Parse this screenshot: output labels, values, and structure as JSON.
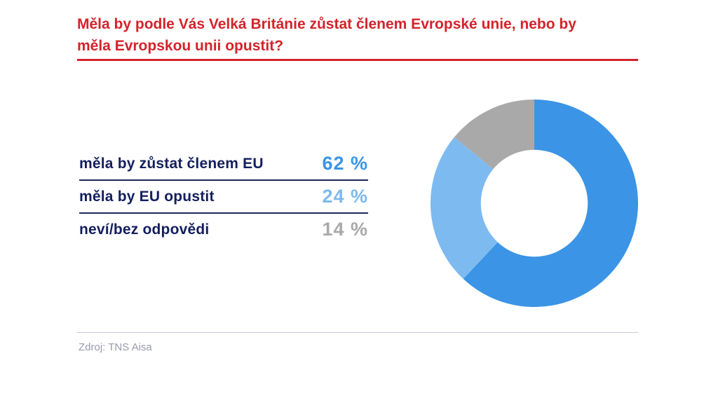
{
  "chart_data": {
    "type": "pie",
    "style": "donut",
    "title": "Měla by podle Vás Velká Británie zůstat členem Evropské unie, nebo by měla Evropskou unii opustit?",
    "title_lines": [
      "Měla by podle Vás Velká Británie zůstat členem Evropské unie, nebo by",
      "měla Evropskou unii opustit?"
    ],
    "categories": [
      "měla by zůstat členem EU",
      "měla by EU opustit",
      "neví/bez odpovědi"
    ],
    "values": [
      62,
      24,
      14
    ],
    "unit": "%",
    "value_labels": [
      "62 %",
      "24 %",
      "14 %"
    ],
    "colors": [
      "#3b94e5",
      "#7dbaef",
      "#a9a9a9"
    ],
    "start_angle_deg": 0,
    "direction": "clockwise",
    "inner_radius_ratio": 0.515,
    "legend_position": "left",
    "data_labels_shown_on_slices": false
  },
  "source_note": "Zdroj: TNS Aisa",
  "colors": {
    "background": "#ffffff",
    "title_red": "#d4232a",
    "label_navy": "#141f5e",
    "separator_navy": "#1b295c",
    "footer_rule_gray": "#c9c9d6",
    "source_gray": "#9a9ab0"
  }
}
